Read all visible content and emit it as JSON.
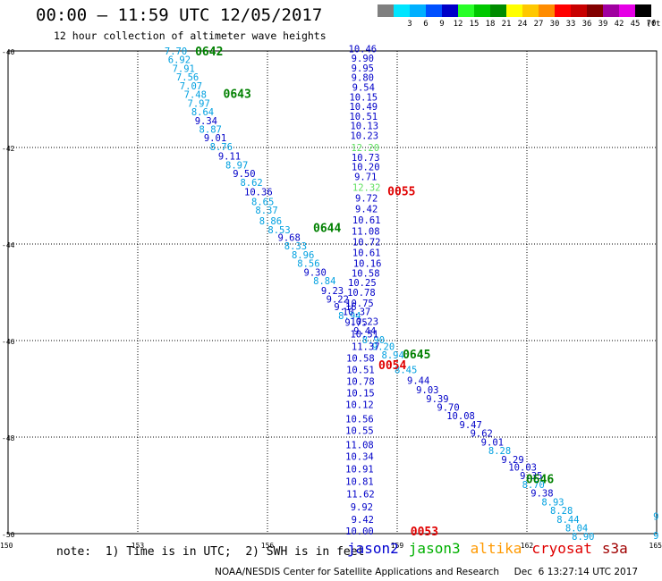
{
  "header": {
    "title": "00:00 – 11:59 UTC 12/05/2017",
    "subtitle": "12 hour collection of altimeter wave heights"
  },
  "color_scale": {
    "unit_label": "(ft)",
    "swatches": [
      {
        "color": "#7f7f7f",
        "label": ""
      },
      {
        "color": "#00e5ff",
        "label": "3"
      },
      {
        "color": "#00b0ff",
        "label": "6"
      },
      {
        "color": "#0050ff",
        "label": "9"
      },
      {
        "color": "#0000c8",
        "label": "12"
      },
      {
        "color": "#28ff28",
        "label": "15"
      },
      {
        "color": "#00c800",
        "label": "18"
      },
      {
        "color": "#008c00",
        "label": "21"
      },
      {
        "color": "#ffff00",
        "label": "24"
      },
      {
        "color": "#ffc800",
        "label": "27"
      },
      {
        "color": "#ff8c00",
        "label": "30"
      },
      {
        "color": "#ff0000",
        "label": "33"
      },
      {
        "color": "#c80000",
        "label": "36"
      },
      {
        "color": "#820000",
        "label": "39"
      },
      {
        "color": "#a000a0",
        "label": "42"
      },
      {
        "color": "#e600e6",
        "label": "45"
      },
      {
        "color": "#000000",
        "label": "70"
      }
    ]
  },
  "map": {
    "lat_labels": [
      "-40",
      "-42",
      "-44",
      "-46",
      "-48",
      "-50"
    ],
    "lon_labels": [
      "150",
      "153",
      "156",
      "159",
      "162",
      "165"
    ],
    "lat_lines": [
      -40,
      -42,
      -44,
      -46,
      -48,
      -50
    ],
    "lon_lines": [
      153,
      156,
      159,
      162
    ]
  },
  "satellite_colors": {
    "jason2": "#0000c8",
    "jason3": "#00a0e0",
    "altika": "#00b0e0",
    "cryosat": "#e00000",
    "green": "#60e060"
  },
  "tracks": [
    {
      "name": "track-left",
      "points": [
        {
          "lon": 153.88,
          "lat": -40.0,
          "v": "7.70",
          "c": "jason3"
        },
        {
          "lon": 153.96,
          "lat": -40.18,
          "v": "6.92",
          "c": "jason3"
        },
        {
          "lon": 154.06,
          "lat": -40.36,
          "v": "7.91",
          "c": "jason3"
        },
        {
          "lon": 154.15,
          "lat": -40.54,
          "v": "7.56",
          "c": "jason3"
        },
        {
          "lon": 154.23,
          "lat": -40.72,
          "v": "7.07",
          "c": "jason3"
        },
        {
          "lon": 154.33,
          "lat": -40.9,
          "v": "7.48",
          "c": "jason3"
        },
        {
          "lon": 154.41,
          "lat": -41.08,
          "v": "7.97",
          "c": "jason3"
        },
        {
          "lon": 154.5,
          "lat": -41.26,
          "v": "8.64",
          "c": "jason3"
        },
        {
          "lon": 154.58,
          "lat": -41.44,
          "v": "9.34",
          "c": "jason2"
        },
        {
          "lon": 154.68,
          "lat": -41.62,
          "v": "8.87",
          "c": "jason3"
        },
        {
          "lon": 154.79,
          "lat": -41.8,
          "v": "9.01",
          "c": "jason2"
        },
        {
          "lon": 154.93,
          "lat": -41.98,
          "v": "8.76",
          "c": "jason3"
        },
        {
          "lon": 155.12,
          "lat": -42.18,
          "v": "9.11",
          "c": "jason2"
        },
        {
          "lon": 155.29,
          "lat": -42.36,
          "v": "8.97",
          "c": "jason3"
        },
        {
          "lon": 155.46,
          "lat": -42.54,
          "v": "9.50",
          "c": "jason2"
        },
        {
          "lon": 155.63,
          "lat": -42.72,
          "v": "8.62",
          "c": "jason3"
        },
        {
          "lon": 155.79,
          "lat": -42.92,
          "v": "10.36",
          "c": "jason2"
        },
        {
          "lon": 155.89,
          "lat": -43.12,
          "v": "8.65",
          "c": "jason3"
        },
        {
          "lon": 155.98,
          "lat": -43.3,
          "v": "8.37",
          "c": "jason3"
        },
        {
          "lon": 156.07,
          "lat": -43.52,
          "v": "8.86",
          "c": "jason3"
        },
        {
          "lon": 156.27,
          "lat": -43.7,
          "v": "8.53",
          "c": "jason3"
        },
        {
          "lon": 156.5,
          "lat": -43.86,
          "v": "9.68",
          "c": "jason2"
        },
        {
          "lon": 156.65,
          "lat": -44.04,
          "v": "8.33",
          "c": "jason3"
        },
        {
          "lon": 156.82,
          "lat": -44.22,
          "v": "8.96",
          "c": "jason3"
        },
        {
          "lon": 156.95,
          "lat": -44.4,
          "v": "8.56",
          "c": "jason3"
        },
        {
          "lon": 157.1,
          "lat": -44.58,
          "v": "9.30",
          "c": "jason2"
        },
        {
          "lon": 157.32,
          "lat": -44.76,
          "v": "8.84",
          "c": "jason3"
        },
        {
          "lon": 157.5,
          "lat": -44.96,
          "v": "9.23",
          "c": "jason2"
        },
        {
          "lon": 157.62,
          "lat": -45.14,
          "v": "9.22",
          "c": "jason2"
        },
        {
          "lon": 157.8,
          "lat": -45.3,
          "v": "9.16",
          "c": "jason2"
        },
        {
          "lon": 157.9,
          "lat": -45.48,
          "v": "8.94",
          "c": "jason3"
        },
        {
          "lon": 158.05,
          "lat": -45.62,
          "v": "9.75",
          "c": "jason2"
        },
        {
          "lon": 158.25,
          "lat": -45.8,
          "v": "9.44",
          "c": "jason2"
        },
        {
          "lon": 158.45,
          "lat": -45.98,
          "v": "8.90",
          "c": "jason3"
        },
        {
          "lon": 158.68,
          "lat": -46.12,
          "v": "9.20",
          "c": "jason3"
        },
        {
          "lon": 158.9,
          "lat": -46.3,
          "v": "8.94",
          "c": "jason3"
        },
        {
          "lon": 159.2,
          "lat": -46.6,
          "v": "8.45",
          "c": "jason3"
        },
        {
          "lon": 159.49,
          "lat": -46.82,
          "v": "9.44",
          "c": "jason2"
        },
        {
          "lon": 159.7,
          "lat": -47.02,
          "v": "9.03",
          "c": "jason2"
        },
        {
          "lon": 159.93,
          "lat": -47.2,
          "v": "9.39",
          "c": "jason2"
        },
        {
          "lon": 160.18,
          "lat": -47.38,
          "v": "9.70",
          "c": "jason2"
        },
        {
          "lon": 160.47,
          "lat": -47.56,
          "v": "10.08",
          "c": "jason2"
        },
        {
          "lon": 160.7,
          "lat": -47.74,
          "v": "9.47",
          "c": "jason2"
        },
        {
          "lon": 160.95,
          "lat": -47.92,
          "v": "9.62",
          "c": "jason2"
        },
        {
          "lon": 161.2,
          "lat": -48.1,
          "v": "9.01",
          "c": "jason2"
        },
        {
          "lon": 161.37,
          "lat": -48.28,
          "v": "8.28",
          "c": "jason3"
        },
        {
          "lon": 161.67,
          "lat": -48.46,
          "v": "9.29",
          "c": "jason2"
        },
        {
          "lon": 161.9,
          "lat": -48.62,
          "v": "10.03",
          "c": "jason2"
        },
        {
          "lon": 162.1,
          "lat": -48.8,
          "v": "9.35",
          "c": "jason2"
        },
        {
          "lon": 162.15,
          "lat": -48.98,
          "v": "8.70",
          "c": "jason3"
        },
        {
          "lon": 162.35,
          "lat": -49.16,
          "v": "9.38",
          "c": "jason2"
        },
        {
          "lon": 162.6,
          "lat": -49.34,
          "v": "8.93",
          "c": "jason3"
        },
        {
          "lon": 162.8,
          "lat": -49.52,
          "v": "8.28",
          "c": "jason3"
        },
        {
          "lon": 162.95,
          "lat": -49.7,
          "v": "8.44",
          "c": "jason3"
        },
        {
          "lon": 163.15,
          "lat": -49.88,
          "v": "8.04",
          "c": "jason3"
        },
        {
          "lon": 163.3,
          "lat": -50.06,
          "v": "8.90",
          "c": "jason3"
        }
      ]
    },
    {
      "name": "track-center",
      "points": [
        {
          "lon": 158.2,
          "lat": -39.95,
          "v": "10.46",
          "c": "jason2"
        },
        {
          "lon": 158.2,
          "lat": -40.15,
          "v": "9.90",
          "c": "jason2"
        },
        {
          "lon": 158.2,
          "lat": -40.35,
          "v": "9.95",
          "c": "jason2"
        },
        {
          "lon": 158.2,
          "lat": -40.55,
          "v": "9.80",
          "c": "jason2"
        },
        {
          "lon": 158.22,
          "lat": -40.75,
          "v": "9.54",
          "c": "jason2"
        },
        {
          "lon": 158.22,
          "lat": -40.95,
          "v": "10.15",
          "c": "jason2"
        },
        {
          "lon": 158.22,
          "lat": -41.15,
          "v": "10.49",
          "c": "jason2"
        },
        {
          "lon": 158.22,
          "lat": -41.35,
          "v": "10.51",
          "c": "jason2"
        },
        {
          "lon": 158.24,
          "lat": -41.55,
          "v": "10.13",
          "c": "jason2"
        },
        {
          "lon": 158.24,
          "lat": -41.75,
          "v": "10.23",
          "c": "jason2"
        },
        {
          "lon": 158.26,
          "lat": -42.0,
          "v": "12.20",
          "c": "green"
        },
        {
          "lon": 158.27,
          "lat": -42.2,
          "v": "10.73",
          "c": "jason2"
        },
        {
          "lon": 158.27,
          "lat": -42.4,
          "v": "10.20",
          "c": "jason2"
        },
        {
          "lon": 158.27,
          "lat": -42.6,
          "v": "9.71",
          "c": "jason2"
        },
        {
          "lon": 158.29,
          "lat": -42.82,
          "v": "12.32",
          "c": "green"
        },
        {
          "lon": 158.29,
          "lat": -43.05,
          "v": "9.72",
          "c": "jason2"
        },
        {
          "lon": 158.29,
          "lat": -43.27,
          "v": "9.42",
          "c": "jason2"
        },
        {
          "lon": 158.29,
          "lat": -43.5,
          "v": "10.61",
          "c": "jason2"
        },
        {
          "lon": 158.27,
          "lat": -43.73,
          "v": "11.08",
          "c": "jason2"
        },
        {
          "lon": 158.29,
          "lat": -43.95,
          "v": "10.72",
          "c": "jason2"
        },
        {
          "lon": 158.29,
          "lat": -44.18,
          "v": "10.61",
          "c": "jason2"
        },
        {
          "lon": 158.31,
          "lat": -44.4,
          "v": "10.16",
          "c": "jason2"
        },
        {
          "lon": 158.27,
          "lat": -44.6,
          "v": "10.58",
          "c": "jason2"
        },
        {
          "lon": 158.19,
          "lat": -44.8,
          "v": "10.25",
          "c": "jason2"
        },
        {
          "lon": 158.17,
          "lat": -45.0,
          "v": "10.78",
          "c": "jason2"
        },
        {
          "lon": 158.13,
          "lat": -45.22,
          "v": "10.75",
          "c": "jason2"
        },
        {
          "lon": 158.06,
          "lat": -45.4,
          "v": "10.37",
          "c": "jason2"
        },
        {
          "lon": 158.24,
          "lat": -45.6,
          "v": "10.23",
          "c": "jason2"
        },
        {
          "lon": 158.24,
          "lat": -45.86,
          "v": "10.51",
          "c": "jason2"
        },
        {
          "lon": 158.27,
          "lat": -46.12,
          "v": "11.37",
          "c": "jason2"
        },
        {
          "lon": 158.15,
          "lat": -46.36,
          "v": "10.58",
          "c": "jason2"
        },
        {
          "lon": 158.15,
          "lat": -46.6,
          "v": "10.51",
          "c": "jason2"
        },
        {
          "lon": 158.15,
          "lat": -46.84,
          "v": "10.78",
          "c": "jason2"
        },
        {
          "lon": 158.15,
          "lat": -47.08,
          "v": "10.15",
          "c": "jason2"
        },
        {
          "lon": 158.13,
          "lat": -47.32,
          "v": "10.12",
          "c": "jason2"
        },
        {
          "lon": 158.13,
          "lat": -47.62,
          "v": "10.56",
          "c": "jason2"
        },
        {
          "lon": 158.13,
          "lat": -47.86,
          "v": "10.55",
          "c": "jason2"
        },
        {
          "lon": 158.13,
          "lat": -48.16,
          "v": "11.08",
          "c": "jason2"
        },
        {
          "lon": 158.13,
          "lat": -48.4,
          "v": "10.34",
          "c": "jason2"
        },
        {
          "lon": 158.13,
          "lat": -48.66,
          "v": "10.91",
          "c": "jason2"
        },
        {
          "lon": 158.13,
          "lat": -48.92,
          "v": "10.81",
          "c": "jason2"
        },
        {
          "lon": 158.15,
          "lat": -49.18,
          "v": "11.62",
          "c": "jason2"
        },
        {
          "lon": 158.18,
          "lat": -49.44,
          "v": "9.92",
          "c": "jason2"
        },
        {
          "lon": 158.2,
          "lat": -49.7,
          "v": "9.42",
          "c": "jason2"
        },
        {
          "lon": 158.13,
          "lat": -49.94,
          "v": "10.00",
          "c": "jason2"
        }
      ]
    }
  ],
  "edge_points": [
    {
      "lon": 165.05,
      "lat": -49.64,
      "v": "9",
      "c": "jason3"
    },
    {
      "lon": 165.05,
      "lat": -50.04,
      "v": "9",
      "c": "jason3"
    }
  ],
  "time_labels": [
    {
      "lon": 154.65,
      "lat": -40.0,
      "v": "0642",
      "c": "#008000"
    },
    {
      "lon": 155.3,
      "lat": -40.88,
      "v": "0643",
      "c": "#008000"
    },
    {
      "lon": 157.38,
      "lat": -43.66,
      "v": "0644",
      "c": "#008000"
    },
    {
      "lon": 159.45,
      "lat": -46.28,
      "v": "0645",
      "c": "#008000"
    },
    {
      "lon": 162.3,
      "lat": -48.86,
      "v": "0646",
      "c": "#008000"
    },
    {
      "lon": 159.1,
      "lat": -42.9,
      "v": "0055",
      "c": "#e00000"
    },
    {
      "lon": 158.89,
      "lat": -46.5,
      "v": "0054",
      "c": "#e00000"
    },
    {
      "lon": 159.63,
      "lat": -49.94,
      "v": "0053",
      "c": "#e00000"
    }
  ],
  "footer": {
    "note": "note:  1) Time is in UTC;  2) SWH is in feet",
    "legend": [
      {
        "label": "jason2",
        "color": "#0000d0"
      },
      {
        "label": "jason3",
        "color": "#00b000"
      },
      {
        "label": "altika",
        "color": "#ff9900"
      },
      {
        "label": "cryosat",
        "color": "#e00000"
      },
      {
        "label": "s3a",
        "color": "#a00000"
      }
    ],
    "credit": "NOAA/NESDIS Center for Satellite Applications and Research     Dec  6 13:27:14 UTC 2017"
  }
}
